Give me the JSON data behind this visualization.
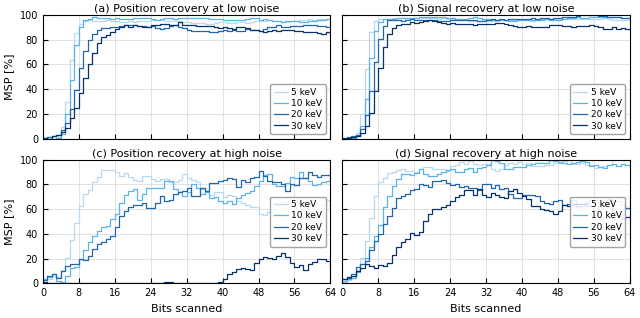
{
  "titles": [
    "(a) Position recovery at low noise",
    "(b) Signal recovery at low noise",
    "(c) Position recovery at high noise",
    "(d) Signal recovery at high noise"
  ],
  "xlabel": "Bits scanned",
  "ylabel": "MSP [%]",
  "colors": [
    "#b8d9f0",
    "#5ab4e8",
    "#2166ac",
    "#08306b"
  ],
  "labels": [
    "5 keV",
    "10 keV",
    "20 keV",
    "30 keV"
  ],
  "xlim": [
    0,
    64
  ],
  "ylim": [
    0,
    100
  ],
  "xticks": [
    0,
    8,
    16,
    24,
    32,
    40,
    48,
    56,
    64
  ],
  "yticks": [
    0,
    20,
    40,
    60,
    80,
    100
  ],
  "grid": true,
  "figsize": [
    6.4,
    3.18
  ],
  "dpi": 100
}
